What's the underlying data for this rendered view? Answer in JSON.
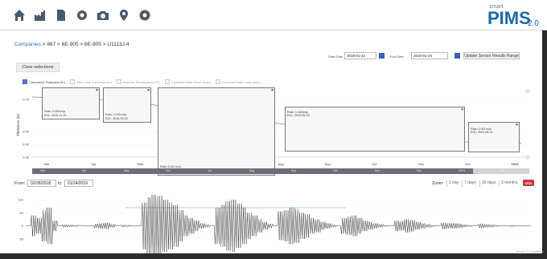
{
  "breadcrumb": [
    "Companies",
    "867",
    "6E-905",
    "6E-905",
    "U1113J-4"
  ],
  "breadcrumb_sep": " > ",
  "dates": {
    "start_label": "Start Date",
    "start_value": "2018-01-24",
    "end_label": "End Date",
    "end_value": "2019-01-24",
    "update_label": "Update Sensor Results Range"
  },
  "clear_label": "Clear selections",
  "legend": [
    {
      "label": "Calculated Thickness (in)",
      "active": true
    },
    {
      "label": "Wire-Loss Thickness (in)",
      "active": false
    },
    {
      "label": "Material Temperature (°C)",
      "active": false
    },
    {
      "label": "Corrosion Rate Short (in/yr)",
      "active": false
    },
    {
      "label": "Corrosion Rate Long (in/yr)",
      "active": false
    }
  ],
  "tooltips": [
    {
      "text1": "Rate: 0.028 in/yr",
      "text2": "EOL: 2019-11-13"
    },
    {
      "text1": "Rate: 0.034 in/yr",
      "text2": "EOL: 2018-03-09"
    },
    {
      "text1": "Rate: 0.011 in/yr",
      "text2": "EOL: 2018-01-26"
    },
    {
      "text1": "Rate: 0.148 in/yr",
      "text2": "EOL: 2019-05-19"
    },
    {
      "text1": "Rate: 0.011 in/yr",
      "text2": "EOL: 2020-08-31"
    }
  ],
  "navigator_labels": [
    "Mar",
    "Apr",
    "May",
    "Jun",
    "Jul",
    "Aug",
    "Sep",
    "Oct",
    "Nov",
    "Dec",
    "2019",
    "Feb"
  ],
  "range": {
    "from_label": "From:",
    "from_value": "02/28/2018",
    "to_label": "to:",
    "to_value": "01/24/2019",
    "zoom_label": "Zoom:",
    "zoom_buttons": [
      "1 day",
      "7 days",
      "30 days",
      "3 months"
    ],
    "zoom_max": "Max"
  },
  "footer_link": "Terms & Conditions",
  "colors": {
    "series": "#8f93d8",
    "accent": "#1a6aa8",
    "max_button": "#c63a3a"
  },
  "chart_data": [
    {
      "type": "line",
      "ylabel": "Thickness (in)",
      "yticks": [
        "0.75",
        "0.50",
        "0.40",
        "0.30"
      ],
      "x_labels": [
        "Mar",
        "Apr",
        "May",
        "Jun",
        "Jul",
        "Aug",
        "Sep",
        "Oct",
        "Nov",
        "Dec",
        "2019"
      ],
      "series": [
        {
          "name": "Calculated Thickness (in)",
          "x": [
            "2018-02-28",
            "2018-03-15",
            "2018-04-01",
            "2018-04-20",
            "2018-05-15",
            "2018-06-15",
            "2018-07-15",
            "2018-08-15",
            "2018-09-15",
            "2018-10-15",
            "2018-11-15",
            "2018-12-15",
            "2019-01-24"
          ],
          "values": [
            0.77,
            0.76,
            0.75,
            0.745,
            0.72,
            0.66,
            0.61,
            0.56,
            0.52,
            0.48,
            0.44,
            0.42,
            0.41
          ]
        }
      ]
    },
    {
      "type": "line",
      "yticks": [
        "100",
        "50",
        "0",
        "-50"
      ],
      "series": [
        {
          "name": "Waveform",
          "values": [
            0,
            40,
            -30,
            60,
            -70,
            20,
            0,
            5,
            -4,
            3,
            0,
            2,
            -2,
            8,
            -10,
            12,
            -6,
            0,
            4,
            -3,
            2,
            0,
            90,
            -110,
            120,
            -115,
            100,
            -90,
            80,
            -60,
            40,
            -30,
            20,
            -10,
            5,
            0,
            70,
            -80,
            95,
            -100,
            85,
            -70,
            50,
            -40,
            25,
            -15,
            8,
            0,
            55,
            -60,
            70,
            -65,
            50,
            -45,
            30,
            -25,
            15,
            -10,
            5,
            0,
            30,
            -35,
            40,
            -30,
            20,
            -15,
            10,
            -6,
            3,
            0,
            20,
            -18,
            25,
            -22,
            15,
            -10,
            6,
            -3,
            0,
            12,
            -10,
            10,
            -8,
            5,
            -3,
            0,
            8,
            -6,
            5,
            -3,
            2,
            0,
            3,
            -2,
            2,
            -1,
            0
          ]
        }
      ]
    }
  ]
}
